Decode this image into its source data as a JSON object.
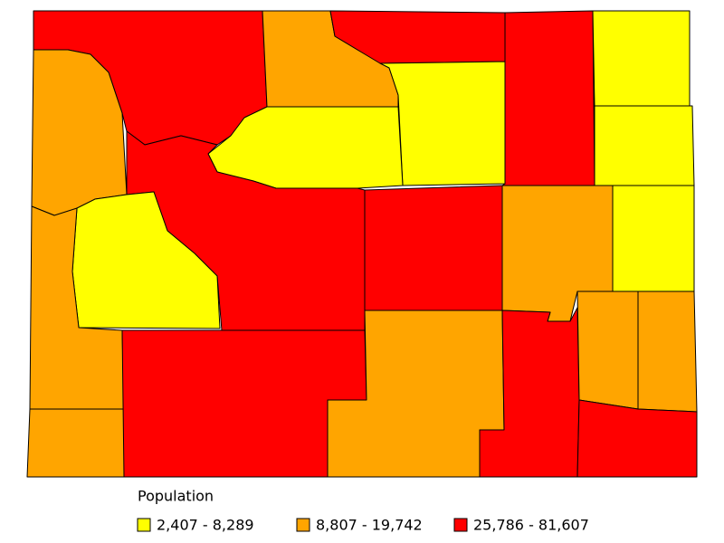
{
  "legend": {
    "title": "Population",
    "items": [
      {
        "label": "2,407 - 8,289",
        "color": "#ffff00"
      },
      {
        "label": "8,807 - 19,742",
        "color": "#ffa500"
      },
      {
        "label": "25,786 - 81,607",
        "color": "#ff0000"
      }
    ]
  }
}
